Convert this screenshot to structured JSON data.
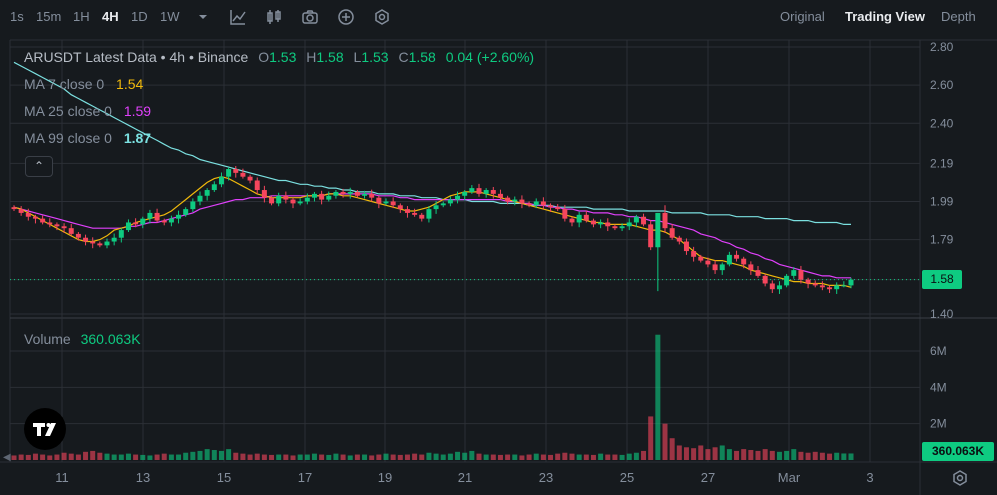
{
  "toolbar": {
    "intervals": [
      "1s",
      "15m",
      "1H",
      "4H",
      "1D",
      "1W"
    ],
    "active_interval": "4H",
    "icons": [
      "chevron-down-icon",
      "indicator-chart-icon",
      "candle-style-icon",
      "camera-icon",
      "plus-circle-icon",
      "hexagon-settings-icon"
    ],
    "views": [
      "Original",
      "Trading View",
      "Depth"
    ],
    "active_view": "Trading View"
  },
  "legend": {
    "title": "ARUSDT Latest Data • 4h • Binance",
    "ohlc": {
      "o_label": "O",
      "o": "1.53",
      "h_label": "H",
      "h": "1.58",
      "l_label": "L",
      "l": "1.53",
      "c_label": "C",
      "c": "1.58",
      "change": "0.04 (+2.60%)"
    },
    "ma7": {
      "label": "MA 7 close 0",
      "value": "1.54",
      "color": "#f0b90b"
    },
    "ma25": {
      "label": "MA 25 close 0",
      "value": "1.59",
      "color": "#e040fb"
    },
    "ma99": {
      "label": "MA 99 close 0",
      "value": "1.87",
      "color": "#7be0e0"
    },
    "collapse_icon": "chevron-up-icon"
  },
  "volume": {
    "label": "Volume",
    "value": "360.063K"
  },
  "price_tag": "1.58",
  "volume_tag": "360.063K",
  "colors": {
    "up": "#0ecb81",
    "down": "#f6465d",
    "background": "#161a1e",
    "grid": "#2b2f36"
  },
  "chart_data": {
    "type": "candlestick",
    "price_axis": {
      "ticks": [
        2.8,
        2.6,
        2.4,
        2.19,
        1.99,
        1.79,
        1.58,
        1.4
      ],
      "ylim": [
        1.4,
        2.8
      ]
    },
    "volume_axis": {
      "ticks": [
        "6M",
        "4M",
        "2M"
      ],
      "tick_values": [
        6000000,
        4000000,
        2000000
      ]
    },
    "x_ticks": [
      "11",
      "13",
      "15",
      "17",
      "19",
      "21",
      "23",
      "25",
      "27",
      "Mar",
      "3"
    ],
    "last_price": 1.58,
    "candles_close": [
      1.95,
      1.93,
      1.91,
      1.9,
      1.88,
      1.87,
      1.86,
      1.85,
      1.82,
      1.8,
      1.78,
      1.77,
      1.76,
      1.78,
      1.8,
      1.84,
      1.88,
      1.87,
      1.9,
      1.93,
      1.89,
      1.88,
      1.9,
      1.92,
      1.95,
      1.99,
      2.02,
      2.05,
      2.08,
      2.12,
      2.16,
      2.14,
      2.12,
      2.1,
      2.05,
      2.01,
      1.98,
      2.02,
      2.0,
      1.98,
      1.99,
      2.01,
      2.03,
      2.0,
      2.02,
      2.04,
      2.03,
      2.04,
      2.02,
      2.03,
      2.01,
      1.98,
      1.99,
      1.97,
      1.95,
      1.93,
      1.92,
      1.9,
      1.95,
      1.97,
      1.98,
      2.0,
      2.02,
      2.04,
      2.06,
      2.03,
      2.05,
      2.03,
      2.01,
      1.99,
      2.0,
      1.98,
      1.97,
      1.99,
      1.97,
      1.96,
      1.95,
      1.9,
      1.88,
      1.92,
      1.89,
      1.87,
      1.88,
      1.86,
      1.85,
      1.86,
      1.88,
      1.91,
      1.87,
      1.75,
      1.93,
      1.85,
      1.8,
      1.78,
      1.73,
      1.7,
      1.68,
      1.66,
      1.63,
      1.66,
      1.71,
      1.69,
      1.66,
      1.63,
      1.6,
      1.56,
      1.53,
      1.55,
      1.6,
      1.63,
      1.58,
      1.56,
      1.55,
      1.54,
      1.53,
      1.55,
      1.55,
      1.58
    ],
    "ma7": [
      1.96,
      1.95,
      1.93,
      1.91,
      1.89,
      1.87,
      1.85,
      1.83,
      1.81,
      1.79,
      1.78,
      1.78,
      1.79,
      1.81,
      1.84,
      1.85,
      1.86,
      1.88,
      1.89,
      1.9,
      1.91,
      1.92,
      1.94,
      1.97,
      2.0,
      2.03,
      2.06,
      2.09,
      2.11,
      2.12,
      2.11,
      2.09,
      2.07,
      2.05,
      2.03,
      2.02,
      2.01,
      2.01,
      2.01,
      2.01,
      2.01,
      2.02,
      2.02,
      2.02,
      2.03,
      2.03,
      2.02,
      2.02,
      2.01,
      2.0,
      1.99,
      1.98,
      1.97,
      1.96,
      1.95,
      1.94,
      1.94,
      1.95,
      1.96,
      1.98,
      2.0,
      2.02,
      2.03,
      2.04,
      2.04,
      2.04,
      2.03,
      2.02,
      2.01,
      2.0,
      1.99,
      1.98,
      1.97,
      1.96,
      1.95,
      1.94,
      1.93,
      1.92,
      1.91,
      1.9,
      1.89,
      1.88,
      1.88,
      1.87,
      1.87,
      1.87,
      1.87,
      1.86,
      1.85,
      1.84,
      1.84,
      1.83,
      1.81,
      1.79,
      1.76,
      1.73,
      1.7,
      1.69,
      1.68,
      1.68,
      1.67,
      1.66,
      1.65,
      1.63,
      1.62,
      1.61,
      1.6,
      1.59,
      1.58,
      1.57,
      1.57,
      1.56,
      1.56,
      1.56,
      1.55,
      1.55,
      1.55,
      1.54
    ],
    "ma25": [
      1.96,
      1.95,
      1.94,
      1.93,
      1.92,
      1.91,
      1.9,
      1.89,
      1.88,
      1.87,
      1.86,
      1.85,
      1.85,
      1.85,
      1.85,
      1.85,
      1.86,
      1.86,
      1.87,
      1.88,
      1.88,
      1.89,
      1.9,
      1.91,
      1.92,
      1.93,
      1.95,
      1.96,
      1.97,
      1.98,
      1.99,
      2.0,
      2.0,
      2.01,
      2.01,
      2.01,
      2.02,
      2.02,
      2.02,
      2.02,
      2.02,
      2.02,
      2.02,
      2.02,
      2.03,
      2.03,
      2.03,
      2.03,
      2.03,
      2.03,
      2.03,
      2.02,
      2.02,
      2.02,
      2.01,
      2.01,
      2.0,
      2.0,
      2.0,
      2.0,
      2.0,
      2.0,
      2.0,
      2.0,
      2.0,
      2.0,
      2.0,
      2.0,
      2.0,
      1.99,
      1.99,
      1.98,
      1.98,
      1.97,
      1.97,
      1.96,
      1.96,
      1.95,
      1.95,
      1.94,
      1.94,
      1.93,
      1.93,
      1.93,
      1.92,
      1.92,
      1.91,
      1.91,
      1.9,
      1.89,
      1.89,
      1.88,
      1.87,
      1.86,
      1.85,
      1.84,
      1.82,
      1.81,
      1.8,
      1.78,
      1.77,
      1.75,
      1.74,
      1.72,
      1.71,
      1.69,
      1.68,
      1.66,
      1.65,
      1.64,
      1.63,
      1.62,
      1.61,
      1.6,
      1.6,
      1.59,
      1.59,
      1.59
    ],
    "ma99": [
      2.72,
      2.7,
      2.68,
      2.66,
      2.64,
      2.62,
      2.6,
      2.58,
      2.55,
      2.53,
      2.51,
      2.49,
      2.47,
      2.45,
      2.43,
      2.41,
      2.39,
      2.37,
      2.35,
      2.33,
      2.31,
      2.29,
      2.27,
      2.26,
      2.24,
      2.23,
      2.21,
      2.2,
      2.19,
      2.18,
      2.17,
      2.16,
      2.15,
      2.14,
      2.13,
      2.12,
      2.11,
      2.1,
      2.1,
      2.09,
      2.08,
      2.08,
      2.07,
      2.07,
      2.06,
      2.06,
      2.05,
      2.05,
      2.04,
      2.04,
      2.04,
      2.03,
      2.03,
      2.03,
      2.02,
      2.02,
      2.02,
      2.01,
      2.01,
      2.01,
      2.0,
      2.0,
      2.0,
      2.0,
      1.99,
      1.99,
      1.99,
      1.99,
      1.98,
      1.98,
      1.98,
      1.98,
      1.97,
      1.97,
      1.97,
      1.97,
      1.96,
      1.96,
      1.96,
      1.96,
      1.96,
      1.95,
      1.95,
      1.95,
      1.95,
      1.95,
      1.94,
      1.94,
      1.94,
      1.94,
      1.94,
      1.94,
      1.93,
      1.93,
      1.93,
      1.93,
      1.93,
      1.92,
      1.92,
      1.92,
      1.92,
      1.91,
      1.91,
      1.91,
      1.91,
      1.9,
      1.9,
      1.9,
      1.9,
      1.89,
      1.89,
      1.89,
      1.88,
      1.88,
      1.88,
      1.88,
      1.87,
      1.87
    ],
    "volumes": [
      0.25,
      0.3,
      0.28,
      0.35,
      0.3,
      0.25,
      0.3,
      0.4,
      0.35,
      0.3,
      0.45,
      0.5,
      0.4,
      0.35,
      0.3,
      0.3,
      0.35,
      0.3,
      0.28,
      0.25,
      0.3,
      0.35,
      0.3,
      0.3,
      0.4,
      0.45,
      0.5,
      0.6,
      0.55,
      0.5,
      0.6,
      0.4,
      0.35,
      0.3,
      0.35,
      0.3,
      0.28,
      0.3,
      0.3,
      0.25,
      0.3,
      0.3,
      0.35,
      0.3,
      0.28,
      0.35,
      0.3,
      0.25,
      0.3,
      0.3,
      0.25,
      0.3,
      0.35,
      0.3,
      0.28,
      0.3,
      0.35,
      0.3,
      0.4,
      0.35,
      0.3,
      0.35,
      0.45,
      0.4,
      0.5,
      0.35,
      0.3,
      0.3,
      0.28,
      0.3,
      0.3,
      0.25,
      0.3,
      0.35,
      0.3,
      0.28,
      0.35,
      0.4,
      0.35,
      0.3,
      0.3,
      0.28,
      0.35,
      0.3,
      0.3,
      0.28,
      0.35,
      0.4,
      0.5,
      2.4,
      6.9,
      2.0,
      1.2,
      0.8,
      0.7,
      0.65,
      0.8,
      0.6,
      0.7,
      0.8,
      0.6,
      0.5,
      0.6,
      0.55,
      0.5,
      0.6,
      0.5,
      0.45,
      0.5,
      0.6,
      0.45,
      0.4,
      0.45,
      0.4,
      0.35,
      0.4,
      0.36,
      0.36
    ]
  }
}
